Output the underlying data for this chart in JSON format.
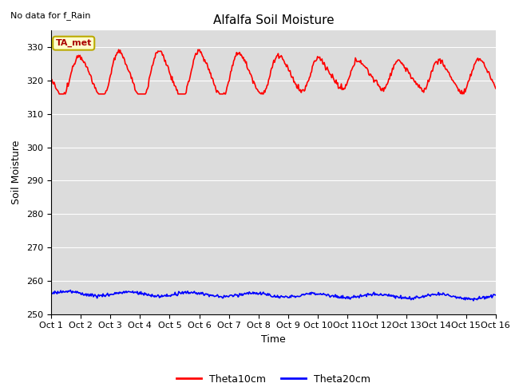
{
  "title": "Alfalfa Soil Moisture",
  "xlabel": "Time",
  "ylabel": "Soil Moisture",
  "annotation_text": "No data for f_Rain",
  "legend_label_text": "TA_met",
  "series": [
    {
      "label": "Theta10cm",
      "color": "#ff0000",
      "linewidth": 1.2
    },
    {
      "label": "Theta20cm",
      "color": "#0000ff",
      "linewidth": 1.2
    }
  ],
  "xlim": [
    1,
    16
  ],
  "ylim": [
    250,
    335
  ],
  "yticks": [
    250,
    260,
    270,
    280,
    290,
    300,
    310,
    320,
    330
  ],
  "xtick_labels": [
    "Oct 1",
    "Oct 2",
    "Oct 3",
    "Oct 4",
    "Oct 5",
    "Oct 6",
    "Oct 7",
    "Oct 8",
    "Oct 9",
    "Oct 10",
    "Oct 11",
    "Oct 12",
    "Oct 13",
    "Oct 14",
    "Oct 15",
    "Oct 16"
  ],
  "background_color": "#dcdcdc",
  "fig_background": "#ffffff",
  "legend_box_color": "#ffffcc",
  "legend_box_edge": "#bbaa00",
  "title_fontsize": 11,
  "axis_label_fontsize": 9,
  "tick_fontsize": 8
}
